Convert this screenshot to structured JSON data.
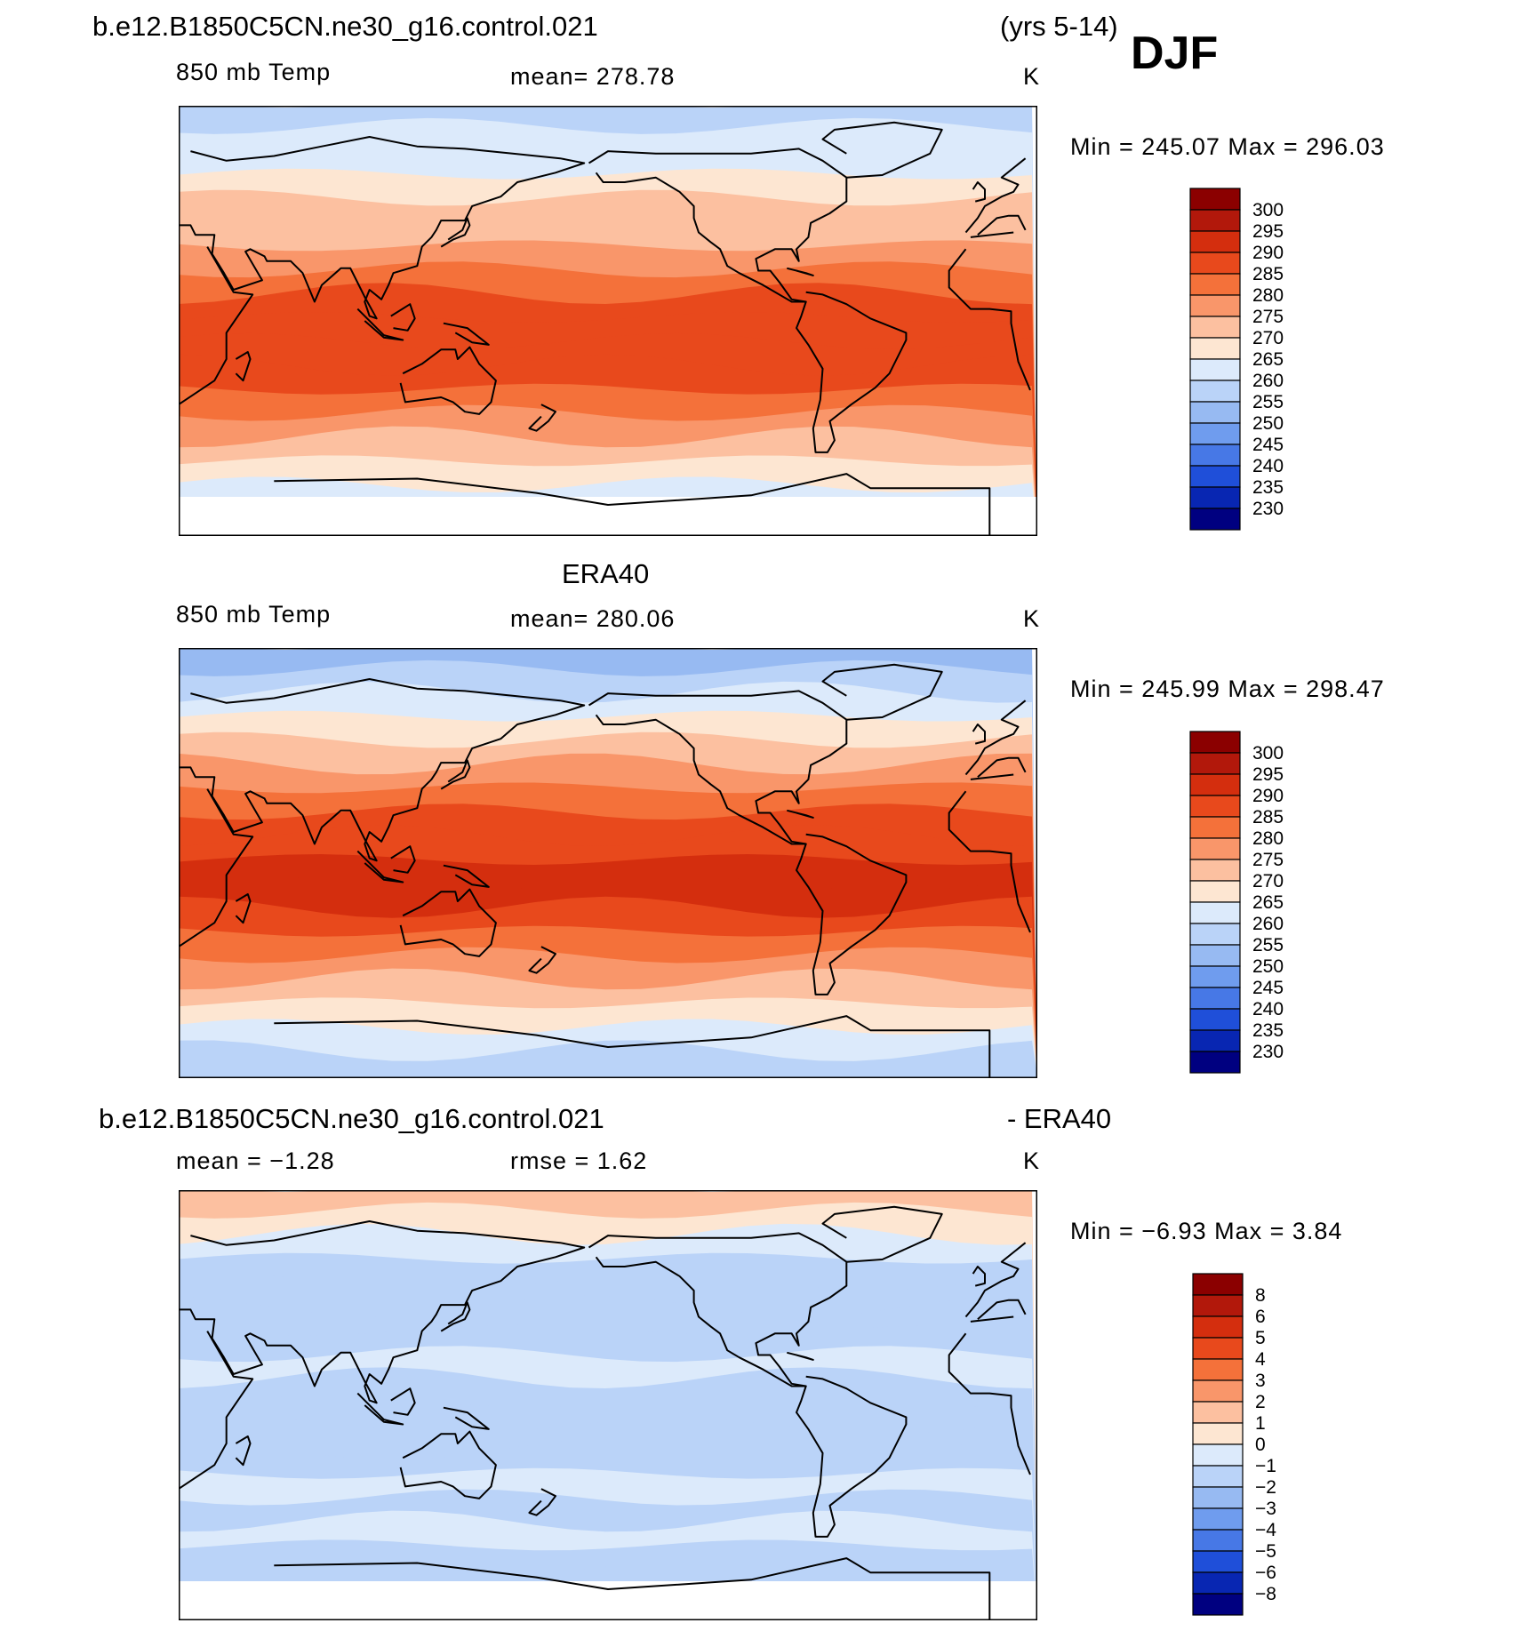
{
  "header": {
    "case_name": "b.e12.B1850C5CN.ne30_g16.control.021",
    "years": "(yrs 5-14)",
    "season": "DJF"
  },
  "panels": [
    {
      "id": "model",
      "title": "",
      "variable": "850 mb Temp",
      "stat_left": "",
      "stat_right": "mean=  278.78",
      "units": "K",
      "minmax": "Min  =  245.07  Max  =  296.03",
      "colorbar": {
        "labels": [
          "300",
          "295",
          "290",
          "285",
          "280",
          "275",
          "270",
          "265",
          "260",
          "255",
          "250",
          "245",
          "240",
          "235",
          "230"
        ],
        "colors": [
          "#8b0000",
          "#b2180b",
          "#d42e0e",
          "#e8491c",
          "#f4713a",
          "#f9966a",
          "#fcc0a0",
          "#fde6d2",
          "#dceafb",
          "#bad3f8",
          "#97baf2",
          "#6f9cee",
          "#4778e6",
          "#1f4fd9",
          "#0826b2",
          "#000080"
        ]
      }
    },
    {
      "id": "obs",
      "title": "ERA40",
      "variable": "850 mb Temp",
      "stat_left": "",
      "stat_right": "mean=  280.06",
      "units": "K",
      "minmax": "Min  =  245.99  Max  =  298.47",
      "colorbar": {
        "labels": [
          "300",
          "295",
          "290",
          "285",
          "280",
          "275",
          "270",
          "265",
          "260",
          "255",
          "250",
          "245",
          "240",
          "235",
          "230"
        ],
        "colors": [
          "#8b0000",
          "#b2180b",
          "#d42e0e",
          "#e8491c",
          "#f4713a",
          "#f9966a",
          "#fcc0a0",
          "#fde6d2",
          "#dceafb",
          "#bad3f8",
          "#97baf2",
          "#6f9cee",
          "#4778e6",
          "#1f4fd9",
          "#0826b2",
          "#000080"
        ]
      }
    },
    {
      "id": "diff",
      "title_left": "b.e12.B1850C5CN.ne30_g16.control.021",
      "title_right": "- ERA40",
      "stat_left": "mean  =    −1.28",
      "stat_right": "rmse  =     1.62",
      "units": "K",
      "minmax": "Min  =    −6.93  Max  =     3.84",
      "colorbar": {
        "labels": [
          "8",
          "6",
          "5",
          "4",
          "3",
          "2",
          "1",
          "0",
          "−1",
          "−2",
          "−3",
          "−4",
          "−5",
          "−6",
          "−8"
        ],
        "colors": [
          "#8b0000",
          "#b2180b",
          "#d42e0e",
          "#e8491c",
          "#f4713a",
          "#f9966a",
          "#fcc0a0",
          "#fde6d2",
          "#dceafb",
          "#bad3f8",
          "#97baf2",
          "#6f9cee",
          "#4778e6",
          "#1f4fd9",
          "#0826b2",
          "#000080"
        ]
      }
    }
  ],
  "map_data": {
    "type": "map",
    "projection": "cylindrical-equidistant, centered 180",
    "field": "850 mb Temp",
    "model_bands_K": [
      255,
      260,
      262,
      266,
      270,
      274,
      278,
      283,
      287,
      289,
      289,
      287,
      283,
      278,
      274,
      268,
      262,
      255
    ],
    "obs_bands_K": [
      250,
      256,
      260,
      265,
      270,
      275,
      280,
      285,
      289,
      292,
      291,
      288,
      284,
      278,
      272,
      266,
      261,
      258
    ],
    "diff_bands_K": [
      1,
      0,
      -1,
      -2,
      -2,
      -2,
      -2,
      -1,
      -2,
      -2,
      -2,
      -2,
      -1,
      -2,
      -1,
      -2,
      -2,
      -1
    ]
  }
}
